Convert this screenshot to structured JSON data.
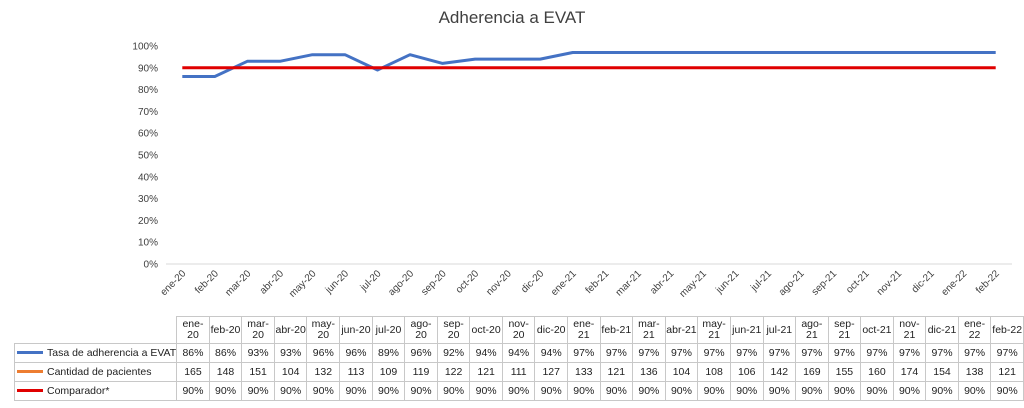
{
  "chart_data": {
    "type": "line",
    "title": "Adherencia a EVAT",
    "xlabel": "",
    "ylabel": "",
    "ylim": [
      0,
      100
    ],
    "y_ticks": [
      "0%",
      "10%",
      "20%",
      "30%",
      "40%",
      "50%",
      "60%",
      "70%",
      "80%",
      "90%",
      "100%"
    ],
    "grid": false,
    "legend": "data-table",
    "categories": [
      "ene-20",
      "feb-20",
      "mar-20",
      "abr-20",
      "may-20",
      "jun-20",
      "jul-20",
      "ago-20",
      "sep-20",
      "oct-20",
      "nov-20",
      "dic-20",
      "ene-21",
      "feb-21",
      "mar-21",
      "abr-21",
      "may-21",
      "jun-21",
      "jul-21",
      "ago-21",
      "sep-21",
      "oct-21",
      "nov-21",
      "dic-21",
      "ene-22",
      "feb-22"
    ],
    "series": [
      {
        "name": "Tasa de adherencia a EVAT",
        "color": "#4472c4",
        "plotted": true,
        "values": [
          86,
          86,
          93,
          93,
          96,
          96,
          89,
          96,
          92,
          94,
          94,
          94,
          97,
          97,
          97,
          97,
          97,
          97,
          97,
          97,
          97,
          97,
          97,
          97,
          97,
          97
        ],
        "labels": [
          "86%",
          "86%",
          "93%",
          "93%",
          "96%",
          "96%",
          "89%",
          "96%",
          "92%",
          "94%",
          "94%",
          "94%",
          "97%",
          "97%",
          "97%",
          "97%",
          "97%",
          "97%",
          "97%",
          "97%",
          "97%",
          "97%",
          "97%",
          "97%",
          "97%",
          "97%"
        ]
      },
      {
        "name": "Cantidad de pacientes",
        "color": "#ed7d31",
        "plotted": false,
        "values": [
          165,
          148,
          151,
          104,
          132,
          113,
          109,
          119,
          122,
          121,
          111,
          127,
          133,
          121,
          136,
          104,
          108,
          106,
          142,
          169,
          155,
          160,
          174,
          154,
          138,
          121
        ],
        "labels": [
          "165",
          "148",
          "151",
          "104",
          "132",
          "113",
          "109",
          "119",
          "122",
          "121",
          "111",
          "127",
          "133",
          "121",
          "136",
          "104",
          "108",
          "106",
          "142",
          "169",
          "155",
          "160",
          "174",
          "154",
          "138",
          "121"
        ]
      },
      {
        "name": "Comparador*",
        "color": "#e00000",
        "plotted": true,
        "values": [
          90,
          90,
          90,
          90,
          90,
          90,
          90,
          90,
          90,
          90,
          90,
          90,
          90,
          90,
          90,
          90,
          90,
          90,
          90,
          90,
          90,
          90,
          90,
          90,
          90,
          90
        ],
        "labels": [
          "90%",
          "90%",
          "90%",
          "90%",
          "90%",
          "90%",
          "90%",
          "90%",
          "90%",
          "90%",
          "90%",
          "90%",
          "90%",
          "90%",
          "90%",
          "90%",
          "90%",
          "90%",
          "90%",
          "90%",
          "90%",
          "90%",
          "90%",
          "90%",
          "90%",
          "90%"
        ]
      }
    ]
  }
}
